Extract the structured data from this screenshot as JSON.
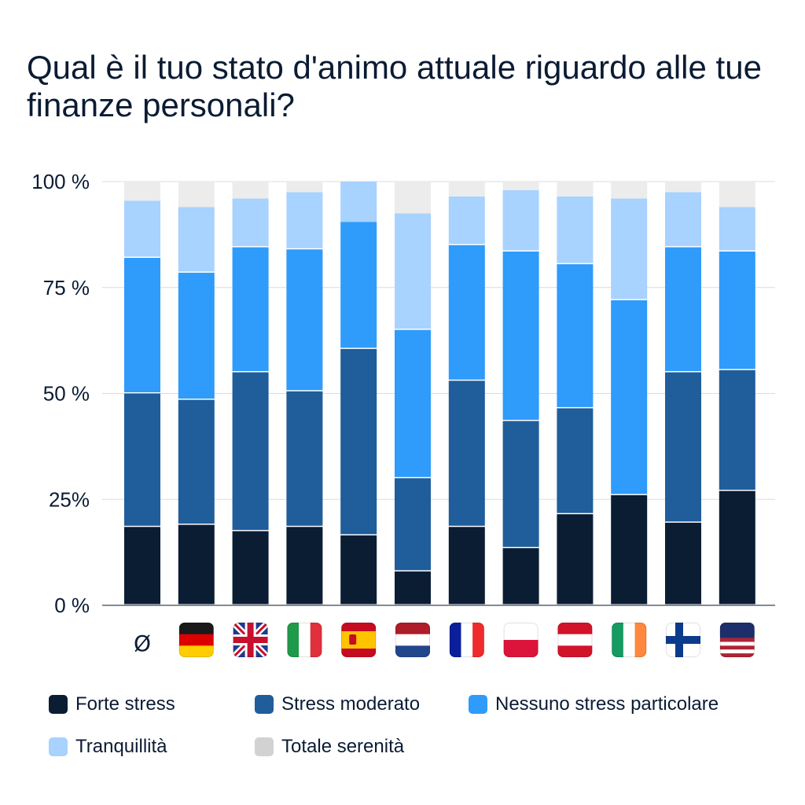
{
  "chart_data": {
    "type": "bar",
    "stacked": true,
    "title": "Qual è il tuo stato d'animo attuale riguardo alle tue finanze personali?",
    "xlabel": "",
    "ylabel": "",
    "ylim": [
      0,
      100
    ],
    "yticks": [
      {
        "value": 0,
        "label": "0 %"
      },
      {
        "value": 25,
        "label": "25%"
      },
      {
        "value": 50,
        "label": "50 %"
      },
      {
        "value": 75,
        "label": "75 %"
      },
      {
        "value": 100,
        "label": "100 %"
      }
    ],
    "grid": true,
    "legend_position": "bottom",
    "categories": [
      "Ø",
      "DE",
      "GB",
      "IT",
      "ES",
      "NL",
      "FR",
      "PL",
      "AT",
      "IE",
      "FI",
      "US"
    ],
    "category_label_text": "Ø",
    "category_flags": [
      "average",
      "germany-flag",
      "uk-flag",
      "italy-flag",
      "spain-flag",
      "netherlands-flag",
      "france-flag",
      "poland-flag",
      "austria-flag",
      "ireland-flag",
      "finland-flag",
      "usa-flag"
    ],
    "series": [
      {
        "name": "Forte stress",
        "color": "#0b1d33",
        "values": [
          18.5,
          19,
          17.5,
          18.5,
          16.5,
          8,
          18.5,
          13.5,
          21.5,
          26,
          19.5,
          27
        ]
      },
      {
        "name": "Stress moderato",
        "color": "#1f5d9b",
        "values": [
          31.5,
          29.5,
          37.5,
          32,
          44,
          22,
          34.5,
          30,
          25,
          0,
          35.5,
          28.5
        ]
      },
      {
        "name": "Nessuno stress particolare",
        "color": "#2f9bfb",
        "values": [
          32,
          30,
          29.5,
          33.5,
          30,
          35,
          32,
          40,
          34,
          46,
          29.5,
          28
        ]
      },
      {
        "name": "Tranquillità",
        "color": "#a8d2ff",
        "values": [
          13.5,
          15.5,
          11.5,
          13.5,
          9.5,
          27.5,
          11.5,
          14.5,
          16,
          24,
          13,
          10.5
        ]
      },
      {
        "name": "Totale serenità",
        "color": "#ececec",
        "values": [
          4.5,
          6,
          4,
          2.5,
          0,
          7.5,
          3.5,
          2,
          3.5,
          4,
          2.5,
          6
        ]
      }
    ]
  }
}
